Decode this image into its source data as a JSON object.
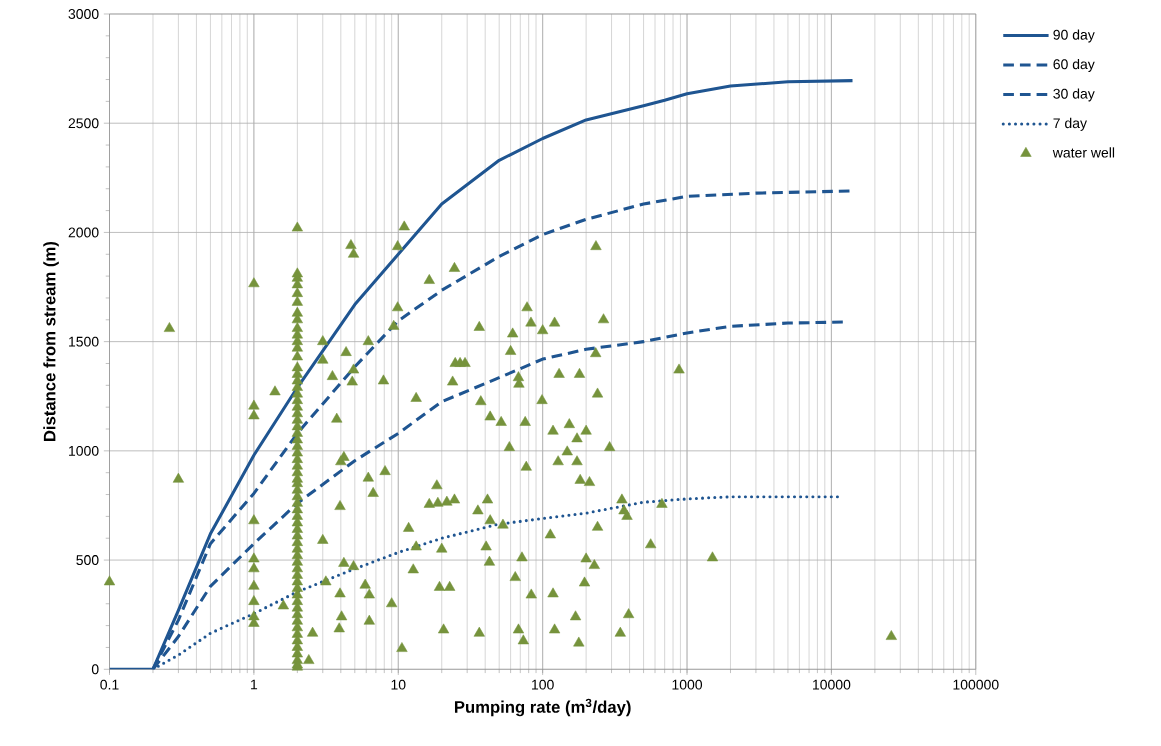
{
  "chart_data": {
    "type": "line",
    "xlabel": "Pumping rate (m$^{3}$/day)",
    "ylabel": "Distance from stream (m)",
    "log": "x",
    "grid": true,
    "legend": "right",
    "xlim": [
      0.1,
      100000
    ],
    "xticks": [
      0.1,
      1,
      10,
      100,
      1000,
      10000,
      100000
    ],
    "ylim": [
      0,
      3000
    ],
    "yticks": [
      0,
      500,
      1000,
      1500,
      2000,
      2500,
      3000
    ],
    "series": [
      {
        "name": "90 day",
        "color": "#1f5591",
        "line_style": "solid",
        "x": [
          0.1,
          0.15,
          0.2,
          0.3,
          0.5,
          1,
          2,
          5,
          10,
          20,
          50,
          100,
          200,
          500,
          700,
          1000,
          2000,
          5000,
          14000
        ],
        "values": [
          0,
          0,
          0,
          270,
          620,
          980,
          1290,
          1670,
          1900,
          2130,
          2330,
          2430,
          2515,
          2580,
          2605,
          2635,
          2670,
          2690,
          2695
        ]
      },
      {
        "name": "60 day",
        "color": "#1f5591",
        "line_style": "dashed",
        "x": [
          0.2,
          0.3,
          0.5,
          1,
          2,
          5,
          10,
          20,
          50,
          100,
          200,
          500,
          1000,
          3000,
          14000
        ],
        "values": [
          0,
          225,
          575,
          805,
          1080,
          1385,
          1595,
          1735,
          1890,
          1990,
          2060,
          2130,
          2165,
          2180,
          2190
        ]
      },
      {
        "name": "30 day",
        "color": "#1f5591",
        "line_style": "dashed",
        "x": [
          0.2,
          0.3,
          0.5,
          1,
          2,
          5,
          10,
          20,
          50,
          100,
          200,
          500,
          1000,
          2000,
          5000,
          13000
        ],
        "values": [
          0,
          150,
          380,
          575,
          760,
          955,
          1080,
          1225,
          1335,
          1420,
          1465,
          1500,
          1540,
          1570,
          1585,
          1590
        ]
      },
      {
        "name": "7 day",
        "color": "#1f5591",
        "line_style": "dotted",
        "x": [
          0.2,
          0.3,
          0.5,
          1,
          2,
          5,
          10,
          20,
          50,
          100,
          200,
          500,
          1000,
          2000,
          12000
        ],
        "values": [
          0,
          65,
          165,
          255,
          355,
          460,
          535,
          600,
          665,
          690,
          715,
          765,
          780,
          790,
          790
        ]
      },
      {
        "name": "water well",
        "type": "scatter",
        "color": "#76933c",
        "marker": "triangle",
        "x": [
          0.1,
          0.26,
          0.3,
          1,
          1,
          1,
          1,
          1,
          1,
          1,
          1,
          1,
          1,
          1.6,
          1.4,
          2,
          2,
          2,
          2,
          2,
          2,
          2,
          2,
          2,
          2,
          2,
          2,
          2,
          2,
          2,
          2,
          2,
          2,
          2,
          2,
          2,
          2,
          2,
          2,
          2,
          2,
          2,
          2,
          2,
          2,
          2,
          2,
          2,
          2,
          2,
          2,
          2,
          2,
          2,
          2,
          2,
          2,
          2,
          2,
          2,
          2,
          2,
          2,
          2,
          2,
          2,
          2,
          2,
          2,
          2,
          2,
          2,
          2,
          2,
          2,
          2,
          2.4,
          2.55,
          3,
          3,
          3,
          3.15,
          3.5,
          3.75,
          3.95,
          3.95,
          3.9,
          4.05,
          4.0,
          4.2,
          4.35,
          4.2,
          4.7,
          4.9,
          4.9,
          4.8,
          4.9,
          5.9,
          6.2,
          6.2,
          6.7,
          6.3,
          6.3,
          7.9,
          8.1,
          9,
          9.3,
          9.9,
          9.9,
          11,
          10.6,
          13.3,
          13.3,
          12.7,
          11.8,
          16.4,
          24.5,
          36.4,
          62,
          60,
          78,
          83,
          100,
          121,
          234,
          264,
          233,
          240,
          880,
          24.8,
          26.8,
          29,
          23.8,
          37.3,
          43.3,
          51.6,
          75.7,
          68,
          68.5,
          130,
          180,
          99,
          58.8,
          77,
          118,
          153,
          173,
          200,
          291,
          148,
          128,
          173,
          182,
          211,
          18.5,
          16.4,
          18.8,
          21.7,
          24.5,
          41.5,
          35.6,
          43.3,
          53.1,
          354,
          366,
          384,
          670,
          240,
          113,
          20,
          40.6,
          42.8,
          71.9,
          200,
          228,
          560,
          1500,
          19.3,
          22.7,
          64.6,
          83.4,
          118,
          195,
          169,
          394,
          20.6,
          36.4,
          68,
          73.5,
          121,
          178,
          345,
          26000
        ],
        "values": [
          400,
          1560,
          870,
          1765,
          1205,
          1160,
          680,
          505,
          460,
          380,
          310,
          240,
          210,
          290,
          1270,
          2020,
          1810,
          1790,
          1760,
          1720,
          1680,
          1630,
          1600,
          1560,
          1530,
          1500,
          1470,
          1430,
          1380,
          1350,
          1320,
          1290,
          1260,
          1230,
          1200,
          1170,
          1140,
          1110,
          1080,
          1050,
          1020,
          990,
          960,
          930,
          900,
          870,
          850,
          820,
          790,
          760,
          730,
          700,
          670,
          640,
          610,
          580,
          550,
          520,
          490,
          460,
          430,
          400,
          370,
          340,
          310,
          280,
          250,
          220,
          190,
          160,
          130,
          100,
          70,
          40,
          20,
          10,
          40,
          165,
          1500,
          1415,
          590,
          400,
          1340,
          1145,
          745,
          345,
          185,
          240,
          950,
          970,
          1450,
          485,
          1940,
          1900,
          1370,
          1315,
          470,
          385,
          1500,
          875,
          805,
          340,
          220,
          1320,
          905,
          300,
          1570,
          1935,
          1655,
          2025,
          95,
          1240,
          560,
          455,
          645,
          1780,
          1835,
          1565,
          1535,
          1455,
          1655,
          1585,
          1550,
          1585,
          1935,
          1600,
          1445,
          1260,
          1370,
          1400,
          1400,
          1400,
          1315,
          1225,
          1155,
          1130,
          1130,
          1335,
          1305,
          1350,
          1350,
          1230,
          1015,
          925,
          1090,
          1120,
          1055,
          1090,
          1015,
          995,
          950,
          950,
          865,
          855,
          840,
          755,
          760,
          765,
          775,
          775,
          725,
          680,
          660,
          775,
          725,
          700,
          755,
          650,
          615,
          550,
          560,
          490,
          510,
          505,
          475,
          570,
          510,
          375,
          375,
          420,
          340,
          345,
          395,
          240,
          250,
          180,
          165,
          180,
          130,
          180,
          120,
          165,
          150
        ]
      }
    ]
  }
}
